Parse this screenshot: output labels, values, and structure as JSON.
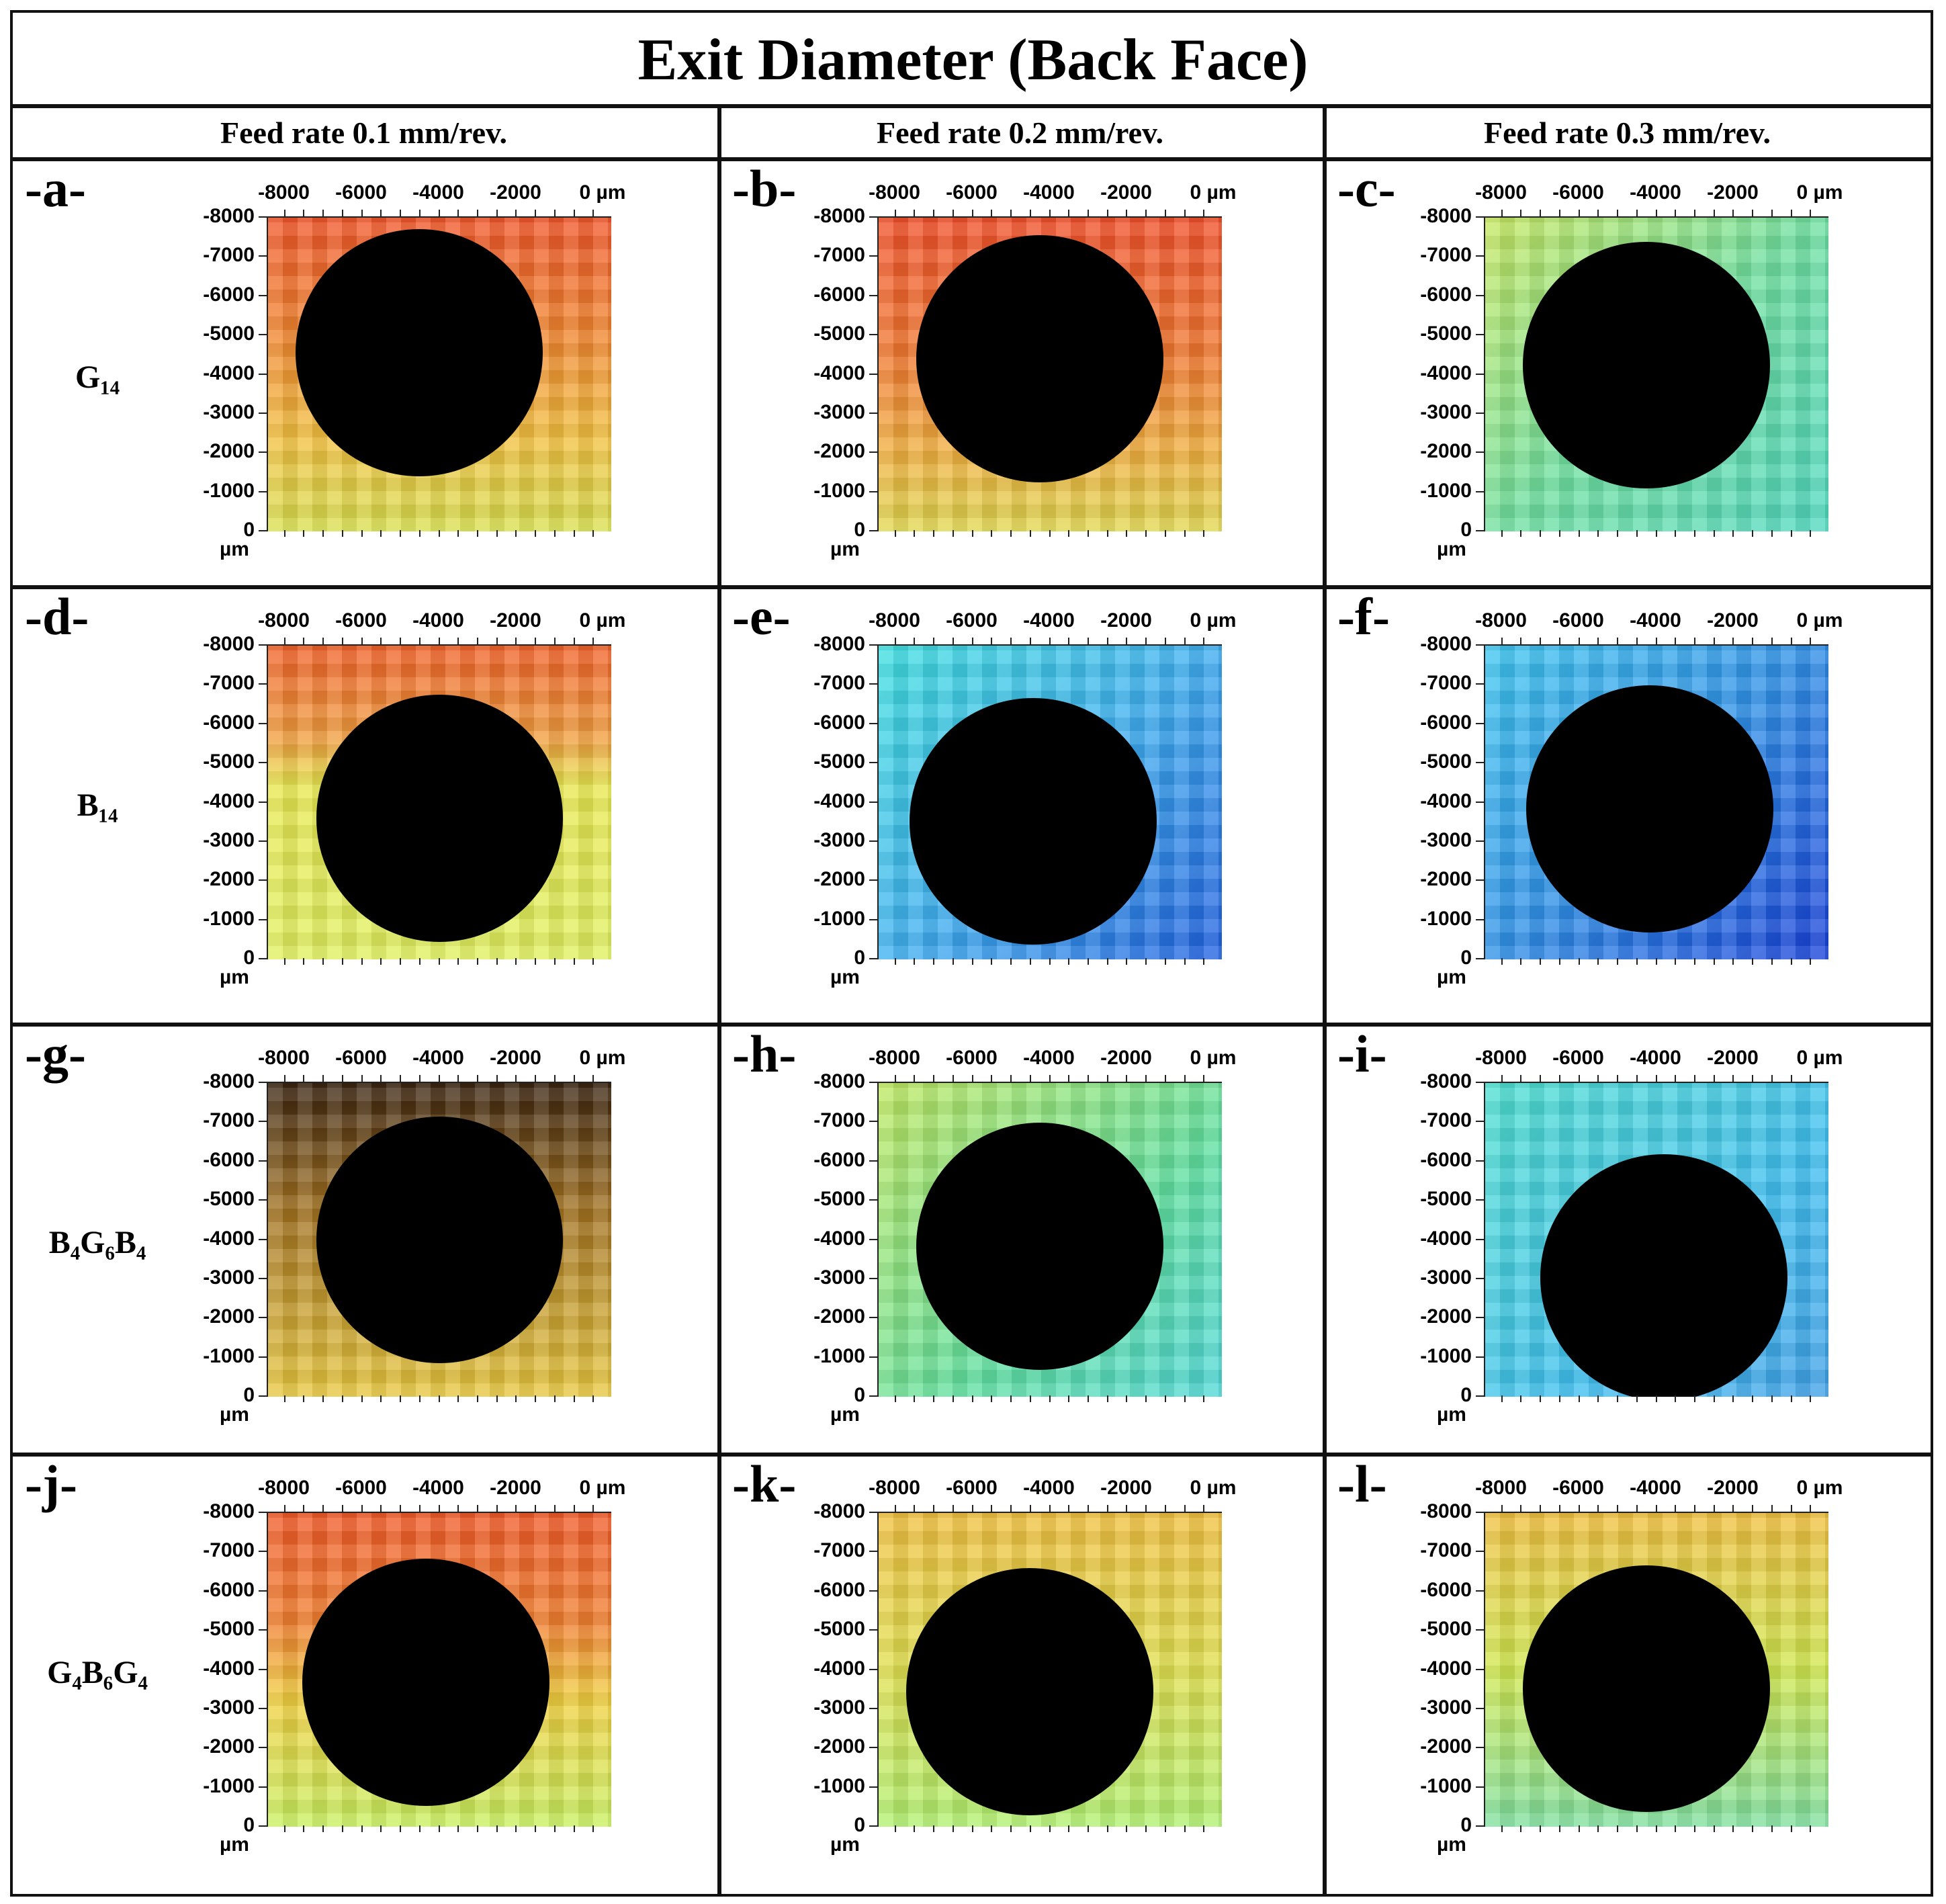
{
  "title": "Exit Diameter (Back Face)",
  "columns": [
    "Feed rate 0.1 mm/rev.",
    "Feed rate 0.2 mm/rev.",
    "Feed rate 0.3 mm/rev."
  ],
  "rows": [
    {
      "label": "G₁₄"
    },
    {
      "label": "B₁₄"
    },
    {
      "label": "B₄G₆B₄"
    },
    {
      "label": "G₄B₆G₄"
    }
  ],
  "panels": [
    {
      "letter": "-a-"
    },
    {
      "letter": "-b-"
    },
    {
      "letter": "-c-"
    },
    {
      "letter": "-d-"
    },
    {
      "letter": "-e-"
    },
    {
      "letter": "-f-"
    },
    {
      "letter": "-g-"
    },
    {
      "letter": "-h-"
    },
    {
      "letter": "-i-"
    },
    {
      "letter": "-j-"
    },
    {
      "letter": "-k-"
    },
    {
      "letter": "-l-"
    }
  ],
  "axes": {
    "top": [
      "-8000",
      "-6000",
      "-4000",
      "-2000",
      "0 µm"
    ],
    "left": [
      "-8000",
      "-7000",
      "-6000",
      "-5000",
      "-4000",
      "-3000",
      "-2000",
      "-1000",
      "0"
    ],
    "unit": "µm"
  }
}
